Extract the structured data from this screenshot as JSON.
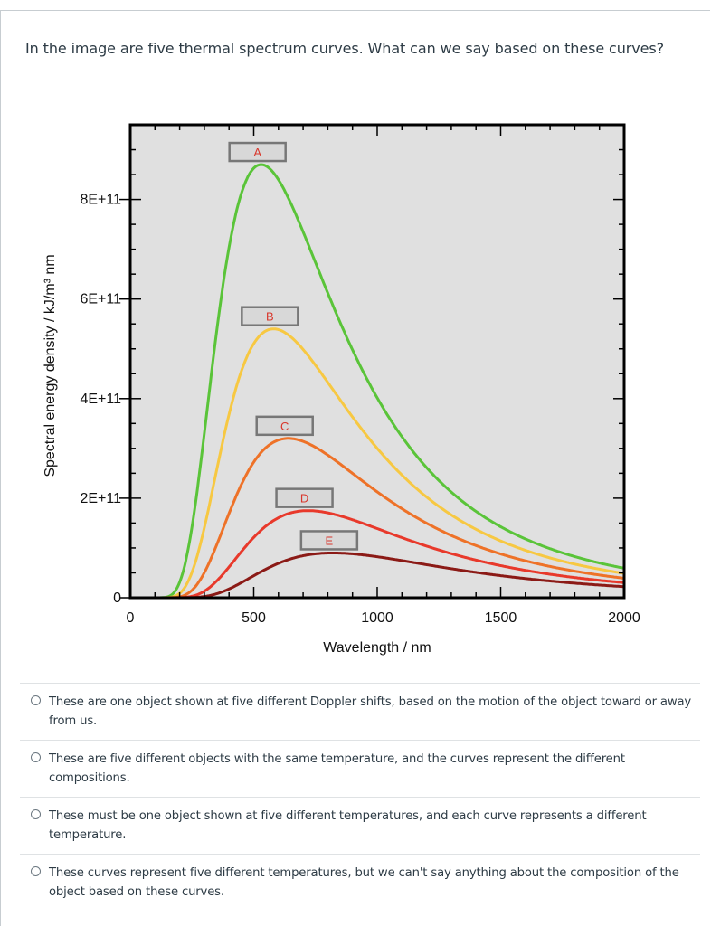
{
  "question": {
    "text": "In the image are five thermal spectrum curves. What can we say based on these curves?"
  },
  "chart_data": {
    "type": "line",
    "xlabel": "Wavelength / nm",
    "ylabel": "Spectral energy density / kJ/m³ nm",
    "xlim": [
      0,
      2000
    ],
    "ylim": [
      0,
      950000000000.0
    ],
    "x_ticks": [
      "0",
      "500",
      "1000",
      "1500",
      "2000"
    ],
    "y_ticks": [
      "0",
      "2E+11",
      "4E+11",
      "6E+11",
      "8E+11"
    ],
    "grid": false,
    "background": "#e0e0e0",
    "series": [
      {
        "name": "A",
        "color": "#5ac439",
        "peak_wavelength_nm": 530,
        "peak_value": 870000000000.0
      },
      {
        "name": "B",
        "color": "#f7c842",
        "peak_wavelength_nm": 580,
        "peak_value": 540000000000.0
      },
      {
        "name": "C",
        "color": "#ee7228",
        "peak_wavelength_nm": 640,
        "peak_value": 320000000000.0
      },
      {
        "name": "D",
        "color": "#e8392b",
        "peak_wavelength_nm": 720,
        "peak_value": 175000000000.0
      },
      {
        "name": "E",
        "color": "#8b1a16",
        "peak_wavelength_nm": 820,
        "peak_value": 90000000000.0
      }
    ]
  },
  "answers": [
    {
      "text": "These are one object shown at five different Doppler shifts, based on the motion of the object toward or away from us."
    },
    {
      "text": "These are five different objects with the same temperature, and the curves represent the different compositions."
    },
    {
      "text": "These must be one object shown at five different temperatures, and each curve represents a different temperature."
    },
    {
      "text": "These curves represent five different temperatures, but we can't say anything about the composition of the object based on these curves."
    }
  ]
}
